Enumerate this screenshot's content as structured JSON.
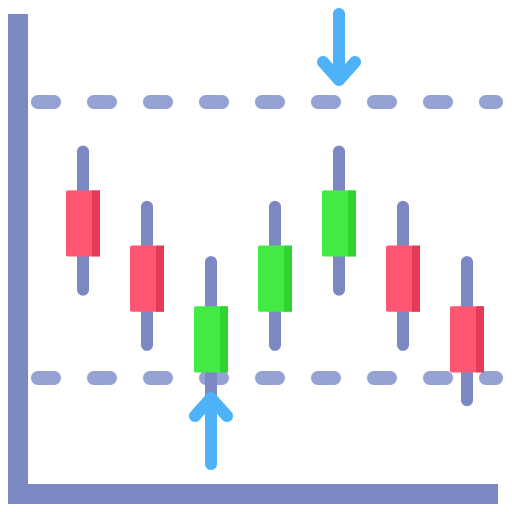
{
  "colors": {
    "axis": "#7b88c2",
    "level_line": "#97a2d4",
    "wick": "#7b88c2",
    "bearish_body": "#ff5674",
    "bearish_shade": "#e43a58",
    "bullish_body": "#43ea43",
    "bullish_shade": "#2ed52e",
    "arrow": "#4db2f7"
  },
  "icons": {
    "top_arrow": "arrow-down-icon",
    "bottom_arrow": "arrow-up-icon"
  },
  "chart_data": {
    "type": "candlestick",
    "title": "",
    "xlabel": "",
    "ylabel": "",
    "grid": false,
    "ylim": [
      0,
      100
    ],
    "resistance_level": 85,
    "support_level": 35,
    "resistance_arrow_candle": 5,
    "support_arrow_candle": 3,
    "candles": [
      {
        "index": 1,
        "open": 69,
        "close": 57,
        "high": 76,
        "low": 51,
        "direction": "bearish"
      },
      {
        "index": 2,
        "open": 59,
        "close": 47,
        "high": 66,
        "low": 41,
        "direction": "bearish"
      },
      {
        "index": 3,
        "open": 36,
        "close": 48,
        "high": 56,
        "low": 31,
        "direction": "bullish"
      },
      {
        "index": 4,
        "open": 47,
        "close": 59,
        "high": 66,
        "low": 41,
        "direction": "bullish"
      },
      {
        "index": 5,
        "open": 57,
        "close": 69,
        "high": 76,
        "low": 51,
        "direction": "bullish"
      },
      {
        "index": 6,
        "open": 59,
        "close": 47,
        "high": 66,
        "low": 41,
        "direction": "bearish"
      },
      {
        "index": 7,
        "open": 48,
        "close": 36,
        "high": 56,
        "low": 31,
        "direction": "bearish"
      }
    ]
  }
}
